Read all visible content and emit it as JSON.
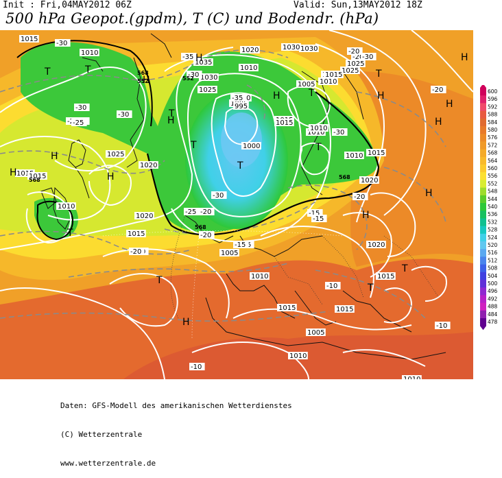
{
  "header": {
    "init": "Init : Fri,04MAY2012 06Z",
    "valid": "Valid: Sun,13MAY2012 18Z",
    "title": "500 hPa Geopot.(gpdm), T (C) und Bodendr. (hPa)"
  },
  "legend": {
    "levels": [
      "600",
      "596",
      "592",
      "588",
      "584",
      "580",
      "576",
      "572",
      "568",
      "564",
      "560",
      "556",
      "552",
      "548",
      "544",
      "540",
      "536",
      "532",
      "528",
      "524",
      "520",
      "516",
      "512",
      "508",
      "504",
      "500",
      "496",
      "492",
      "488",
      "484",
      "478"
    ],
    "colors": [
      "#d0005a",
      "#e0206a",
      "#f04a6a",
      "#e85a40",
      "#e06a30",
      "#e87a2a",
      "#ec8a28",
      "#f09a28",
      "#f4aa28",
      "#f8ba2a",
      "#fcca2c",
      "#fce030",
      "#d8ec30",
      "#9edc2c",
      "#5ccc2a",
      "#2ec838",
      "#18c060",
      "#10c090",
      "#18c8c0",
      "#40d0e8",
      "#60c8f0",
      "#5aa8f0",
      "#4a84ec",
      "#3c60e8",
      "#4040e0",
      "#6030d8",
      "#9028d0",
      "#b820c8",
      "#d020c0",
      "#9020b0",
      "#600090"
    ]
  },
  "map": {
    "pressure_labels": [
      {
        "t": "1015",
        "c": "pressure-label"
      },
      {
        "t": "1010",
        "c": "pressure-label"
      },
      {
        "t": "1020",
        "c": "pressure-label"
      },
      {
        "t": "1035",
        "c": "pressure-label"
      },
      {
        "t": "1030",
        "c": "pressure-label"
      },
      {
        "t": "1025",
        "c": "pressure-label"
      },
      {
        "t": "1030",
        "c": "pressure-label"
      },
      {
        "t": "1025",
        "c": "pressure-label"
      },
      {
        "t": "1005",
        "c": "pressure-label"
      },
      {
        "t": "1000",
        "c": "pressure-label"
      },
      {
        "t": "995",
        "c": "pressure-label"
      },
      {
        "t": "1010",
        "c": "pressure-label"
      },
      {
        "t": "1015",
        "c": "pressure-label"
      },
      {
        "t": "1000",
        "c": "pressure-label"
      },
      {
        "t": "1025",
        "c": "pressure-label"
      },
      {
        "t": "1020",
        "c": "pressure-label"
      },
      {
        "t": "1015",
        "c": "pressure-label"
      },
      {
        "t": "1015",
        "c": "pressure-label"
      },
      {
        "t": "1010",
        "c": "pressure-label"
      },
      {
        "t": "1020",
        "c": "pressure-label"
      },
      {
        "t": "1015",
        "c": "pressure-label"
      },
      {
        "t": "1005",
        "c": "pressure-label"
      },
      {
        "t": "1010",
        "c": "pressure-label"
      },
      {
        "t": "1015",
        "c": "pressure-label"
      },
      {
        "t": "1010",
        "c": "pressure-label"
      },
      {
        "t": "1015",
        "c": "pressure-label"
      },
      {
        "t": "1010",
        "c": "pressure-label"
      },
      {
        "t": "1005",
        "c": "pressure-label"
      },
      {
        "t": "1010",
        "c": "pressure-label"
      },
      {
        "t": "1020",
        "c": "pressure-label"
      },
      {
        "t": "1015",
        "c": "pressure-label"
      },
      {
        "t": "1030",
        "c": "pressure-label"
      },
      {
        "t": "1025",
        "c": "pressure-label"
      },
      {
        "t": "1015",
        "c": "pressure-label"
      },
      {
        "t": "1010",
        "c": "pressure-label"
      },
      {
        "t": "1005",
        "c": "pressure-label"
      },
      {
        "t": "1015",
        "c": "pressure-label"
      },
      {
        "t": "1020",
        "c": "pressure-label"
      },
      {
        "t": "1015",
        "c": "pressure-label"
      },
      {
        "t": "1015",
        "c": "pressure-label"
      },
      {
        "t": "1010",
        "c": "pressure-label"
      },
      {
        "t": "1010",
        "c": "pressure-label"
      }
    ],
    "temp_labels": [
      "-30",
      "-35",
      "-30",
      "-25",
      "-30",
      "-30",
      "-35",
      "-25",
      "-30",
      "-20",
      "-25",
      "-20",
      "-20",
      "-30",
      "-20",
      "-15",
      "-15",
      "-20",
      "-15",
      "-10",
      "-10",
      "-10",
      "-15",
      "-20",
      "-20",
      "-30",
      "-25",
      "-20"
    ],
    "highs": [
      "H",
      "H",
      "H",
      "H",
      "H",
      "H",
      "H",
      "H",
      "H",
      "H",
      "H",
      "H",
      "H",
      "H"
    ],
    "lows": [
      "T",
      "T",
      "T",
      "T",
      "T",
      "T",
      "T",
      "T",
      "T",
      "T",
      "T",
      "T"
    ],
    "station_marks": [
      "568",
      "552",
      "552",
      "568",
      "568",
      "568"
    ]
  },
  "footer": {
    "line1": "Daten: GFS-Modell des amerikanischen Wetterdienstes",
    "line2": "(C) Wetterzentrale",
    "line3": "www.wetterzentrale.de"
  }
}
